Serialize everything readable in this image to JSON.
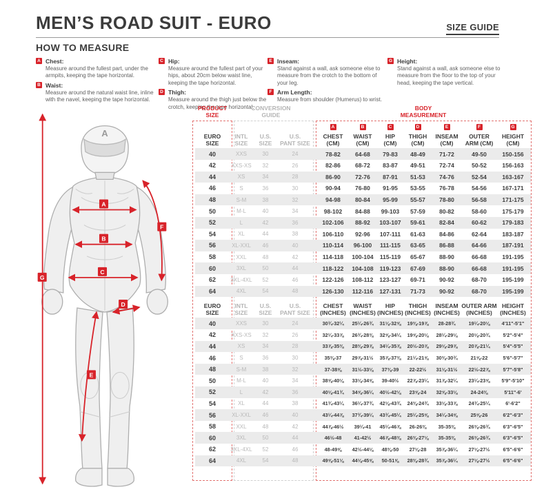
{
  "header": {
    "title": "MEN’S ROAD SUIT - EURO",
    "size_guide_label": "SIZE GUIDE",
    "how_to_measure_label": "HOW TO MEASURE"
  },
  "measure_guide": {
    "columns": [
      [
        {
          "letter": "A",
          "name": "Chest:",
          "text": "Measure around the fullest part, under the armpits, keeping the tape horizontal."
        },
        {
          "letter": "B",
          "name": "Waist:",
          "text": "Measure around the natural waist line, inline with the navel, keeping the tape horizontal."
        }
      ],
      [
        {
          "letter": "C",
          "name": "Hip:",
          "text": "Measure around the fullest part of your hips, about 20cm below waist line, keeping the tape horizontal."
        },
        {
          "letter": "D",
          "name": "Thigh:",
          "text": "Measure around the thigh just below the crotch, keeping the tape horizontal."
        }
      ],
      [
        {
          "letter": "E",
          "name": "Inseam:",
          "text": "Stand against a wall, ask someone else to measure from the crotch to the bottom of your leg."
        },
        {
          "letter": "F",
          "name": "Arm Length:",
          "text": "Measure from shoulder (Humerus) to wrist."
        }
      ],
      [
        {
          "letter": "G",
          "name": "Height:",
          "text": "Stand against a wall, ask someone else to measure from the floor to the top of your head, keeping the tape vertical."
        }
      ]
    ]
  },
  "figure": {
    "helmet_logo": "A",
    "annotations": [
      "A",
      "B",
      "C",
      "D",
      "E",
      "F",
      "G"
    ]
  },
  "size_chart": {
    "product_size_label": "PRODUCT\nSIZE",
    "conversion_guide_label": "CONVERSION\nGUIDE",
    "body_measurement_label": "BODY\nMEASUREMENT",
    "common_headers": [
      [
        "EURO",
        "SIZE"
      ],
      [
        "INTL",
        "SIZE"
      ],
      [
        "U.S.",
        "SIZE"
      ],
      [
        "U.S.",
        "PANT SIZE"
      ]
    ],
    "cm_headers": [
      {
        "letter": "A",
        "l1": "CHEST",
        "l2": "(CM)"
      },
      {
        "letter": "B",
        "l1": "WAIST",
        "l2": "(CM)"
      },
      {
        "letter": "C",
        "l1": "HIP",
        "l2": "(CM)"
      },
      {
        "letter": "D",
        "l1": "THIGH",
        "l2": "(CM)"
      },
      {
        "letter": "E",
        "l1": "INSEAM",
        "l2": "(CM)"
      },
      {
        "letter": "F",
        "l1": "OUTER",
        "l2": "ARM (CM)"
      },
      {
        "letter": "G",
        "l1": "HEIGHT",
        "l2": "(CM)"
      }
    ],
    "inch_headers": [
      [
        "CHEST",
        "(INCHES)"
      ],
      [
        "WAIST",
        "(INCHES)"
      ],
      [
        "HIP",
        "(INCHES)"
      ],
      [
        "THIGH",
        "(INCHES)"
      ],
      [
        "INSEAM",
        "(INCHES)"
      ],
      [
        "OUTER ARM",
        "(INCHES)"
      ],
      [
        "HEIGHT",
        "(INCHES)"
      ]
    ],
    "cm_rows": [
      [
        "40",
        "XXS",
        "30",
        "24",
        "78-82",
        "64-68",
        "79-83",
        "48-49",
        "71-72",
        "49-50",
        "150-156"
      ],
      [
        "42",
        "XXS-XS",
        "32",
        "26",
        "82-86",
        "68-72",
        "83-87",
        "49-51",
        "72-74",
        "50-52",
        "156-163"
      ],
      [
        "44",
        "XS",
        "34",
        "28",
        "86-90",
        "72-76",
        "87-91",
        "51-53",
        "74-76",
        "52-54",
        "163-167"
      ],
      [
        "46",
        "S",
        "36",
        "30",
        "90-94",
        "76-80",
        "91-95",
        "53-55",
        "76-78",
        "54-56",
        "167-171"
      ],
      [
        "48",
        "S-M",
        "38",
        "32",
        "94-98",
        "80-84",
        "95-99",
        "55-57",
        "78-80",
        "56-58",
        "171-175"
      ],
      [
        "50",
        "M-L",
        "40",
        "34",
        "98-102",
        "84-88",
        "99-103",
        "57-59",
        "80-82",
        "58-60",
        "175-179"
      ],
      [
        "52",
        "L",
        "42",
        "36",
        "102-106",
        "88-92",
        "103-107",
        "59-61",
        "82-84",
        "60-62",
        "179-183"
      ],
      [
        "54",
        "XL",
        "44",
        "38",
        "106-110",
        "92-96",
        "107-111",
        "61-63",
        "84-86",
        "62-64",
        "183-187"
      ],
      [
        "56",
        "XL-XXL",
        "46",
        "40",
        "110-114",
        "96-100",
        "111-115",
        "63-65",
        "86-88",
        "64-66",
        "187-191"
      ],
      [
        "58",
        "XXL",
        "48",
        "42",
        "114-118",
        "100-104",
        "115-119",
        "65-67",
        "88-90",
        "66-68",
        "191-195"
      ],
      [
        "60",
        "3XL",
        "50",
        "44",
        "118-122",
        "104-108",
        "119-123",
        "67-69",
        "88-90",
        "66-68",
        "191-195"
      ],
      [
        "62",
        "3XL-4XL",
        "52",
        "46",
        "122-126",
        "108-112",
        "123-127",
        "69-71",
        "90-92",
        "68-70",
        "195-199"
      ],
      [
        "64",
        "4XL",
        "54",
        "48",
        "126-130",
        "112-116",
        "127-131",
        "71-73",
        "90-92",
        "68-70",
        "195-199"
      ]
    ],
    "inch_rows": [
      [
        "40",
        "XXS",
        "30",
        "24",
        "30¾-32¼",
        "25¼-26¾",
        "31⅛-32⅝",
        "19⅜-19⅞",
        "28-28¾",
        "19¼-20⅛",
        "4'11\"-5'1\""
      ],
      [
        "42",
        "XXS-XS",
        "32",
        "26",
        "32¼-33⅞",
        "26¾-28⅜",
        "32⅝-34¼",
        "19⅝-20⅛",
        "28¼-29⅛",
        "20⅛-20¾",
        "5'2\"-5'4\""
      ],
      [
        "44",
        "XS",
        "34",
        "28",
        "33⅞-35⅜",
        "28⅜-29⅞",
        "34¼-35⅞",
        "20½-20⅞",
        "29⅛-29⅞",
        "20⅞-21¼",
        "5'4\"-5'5\""
      ],
      [
        "46",
        "S",
        "36",
        "30",
        "35⅜-37",
        "29⅞-31½",
        "35⅞-37⅜",
        "21¼-21⅝",
        "30⅜-30¾",
        "21⅝-22",
        "5'6\"-5'7\""
      ],
      [
        "48",
        "S-M",
        "38",
        "32",
        "37-38⅝",
        "31½-33⅛",
        "37⅜-39",
        "22-22½",
        "31⅛-31½",
        "22½-22⅞",
        "5'7\"-5'8\""
      ],
      [
        "50",
        "M-L",
        "40",
        "34",
        "38⅝-40⅛",
        "33⅛-34⅝",
        "39-40½",
        "22⅞-23¼",
        "31⅞-32¼",
        "23¼-23⅝",
        "5'9\"-5'10\""
      ],
      [
        "52",
        "L",
        "42",
        "36",
        "40⅛-41¾",
        "34⅝-36¼",
        "40½-42⅛",
        "23⅝-24",
        "32⅝-33⅛",
        "24-24⅜",
        "5'11\"-6'"
      ],
      [
        "54",
        "XL",
        "44",
        "38",
        "41¾-43¼",
        "36¼-37¾",
        "42⅛-43¾",
        "24⅜-24¾",
        "33⅛-33⅞",
        "24¾-25¼",
        "6'-6'2\""
      ],
      [
        "56",
        "XL-XXL",
        "46",
        "40",
        "43¼-44⅞",
        "37¾-39¼",
        "43¾-45¼",
        "25¼-25⅝",
        "34¼-34⅝",
        "25⅝-26",
        "6'2\"-6'3\""
      ],
      [
        "58",
        "XXL",
        "48",
        "42",
        "44⅞-46½",
        "39¼-41",
        "45¼-46⅞",
        "26-26⅜",
        "35-35⅜",
        "26⅜-26¾",
        "6'3\"-6'5\""
      ],
      [
        "60",
        "3XL",
        "50",
        "44",
        "46½-48",
        "41-42½",
        "46⅞-48⅜",
        "26⅜-27⅛",
        "35-35⅜",
        "26⅜-26¾",
        "6'3\"-6'5\""
      ],
      [
        "62",
        "3XL-4XL",
        "52",
        "46",
        "48-49⅝",
        "42½-44⅛",
        "48⅜-50",
        "27⅛-28",
        "35⅞-36¼",
        "27⅛-27½",
        "6'5\"-6'6\""
      ],
      [
        "64",
        "4XL",
        "54",
        "48",
        "49⅝-51⅛",
        "44⅛-45⅝",
        "50-51⅝",
        "28⅜-28¾",
        "35⅞-36¼",
        "27⅛-27½",
        "6'5\"-6'6\""
      ]
    ]
  },
  "colors": {
    "accent_red": "#d8232a",
    "dark_text": "#3c3c3c",
    "conversion_gray": "#b5b5b5",
    "row_stripe": "#ebebeb"
  }
}
